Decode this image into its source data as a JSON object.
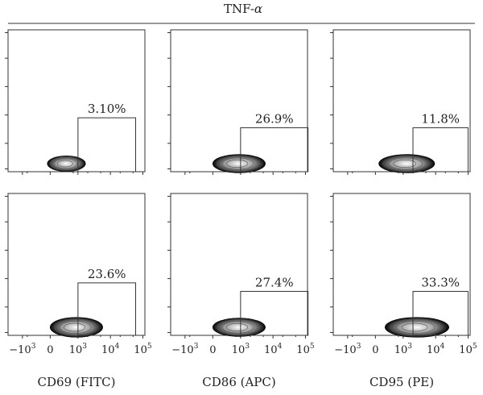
{
  "header": {
    "title_prefix": "TNF-",
    "title_symbol": "α"
  },
  "chart_data": {
    "type": "contour",
    "columns": [
      {
        "marker": "CD69 (FITC)"
      },
      {
        "marker": "CD86 (APC)"
      },
      {
        "marker": "CD95 (PE)"
      }
    ],
    "x_ticks": [
      {
        "value": -1000,
        "base": "−10",
        "exp": "3"
      },
      {
        "value": 0,
        "base": "0",
        "exp": ""
      },
      {
        "value": 1000,
        "base": "10",
        "exp": "3"
      },
      {
        "value": 10000,
        "base": "10",
        "exp": "4"
      },
      {
        "value": 100000,
        "base": "10",
        "exp": "5"
      }
    ],
    "panels": [
      {
        "row": 0,
        "col": 0,
        "gate_pct": "3.10%",
        "gate_x": [
          1000,
          60000
        ],
        "gate_height": 0.38,
        "pop_center": 80,
        "pop_spread": 1.0,
        "pop_height": 0.08
      },
      {
        "row": 0,
        "col": 1,
        "gate_pct": "26.9%",
        "gate_x": [
          1000,
          120000
        ],
        "gate_height": 0.31,
        "pop_center": 300,
        "pop_spread": 1.9,
        "pop_height": 0.1
      },
      {
        "row": 0,
        "col": 2,
        "gate_pct": "11.8%",
        "gate_x": [
          2000,
          100000
        ],
        "gate_height": 0.31,
        "pop_center": 600,
        "pop_spread": 2.1,
        "pop_height": 0.1
      },
      {
        "row": 1,
        "col": 0,
        "gate_pct": "23.6%",
        "gate_x": [
          1000,
          60000
        ],
        "gate_height": 0.37,
        "pop_center": 300,
        "pop_spread": 1.9,
        "pop_height": 0.11
      },
      {
        "row": 1,
        "col": 1,
        "gate_pct": "27.4%",
        "gate_x": [
          1000,
          120000
        ],
        "gate_height": 0.31,
        "pop_center": 300,
        "pop_spread": 1.9,
        "pop_height": 0.1
      },
      {
        "row": 1,
        "col": 2,
        "gate_pct": "33.3%",
        "gate_x": [
          2000,
          100000
        ],
        "gate_height": 0.31,
        "pop_center": 1500,
        "pop_spread": 2.6,
        "pop_height": 0.11
      }
    ]
  }
}
